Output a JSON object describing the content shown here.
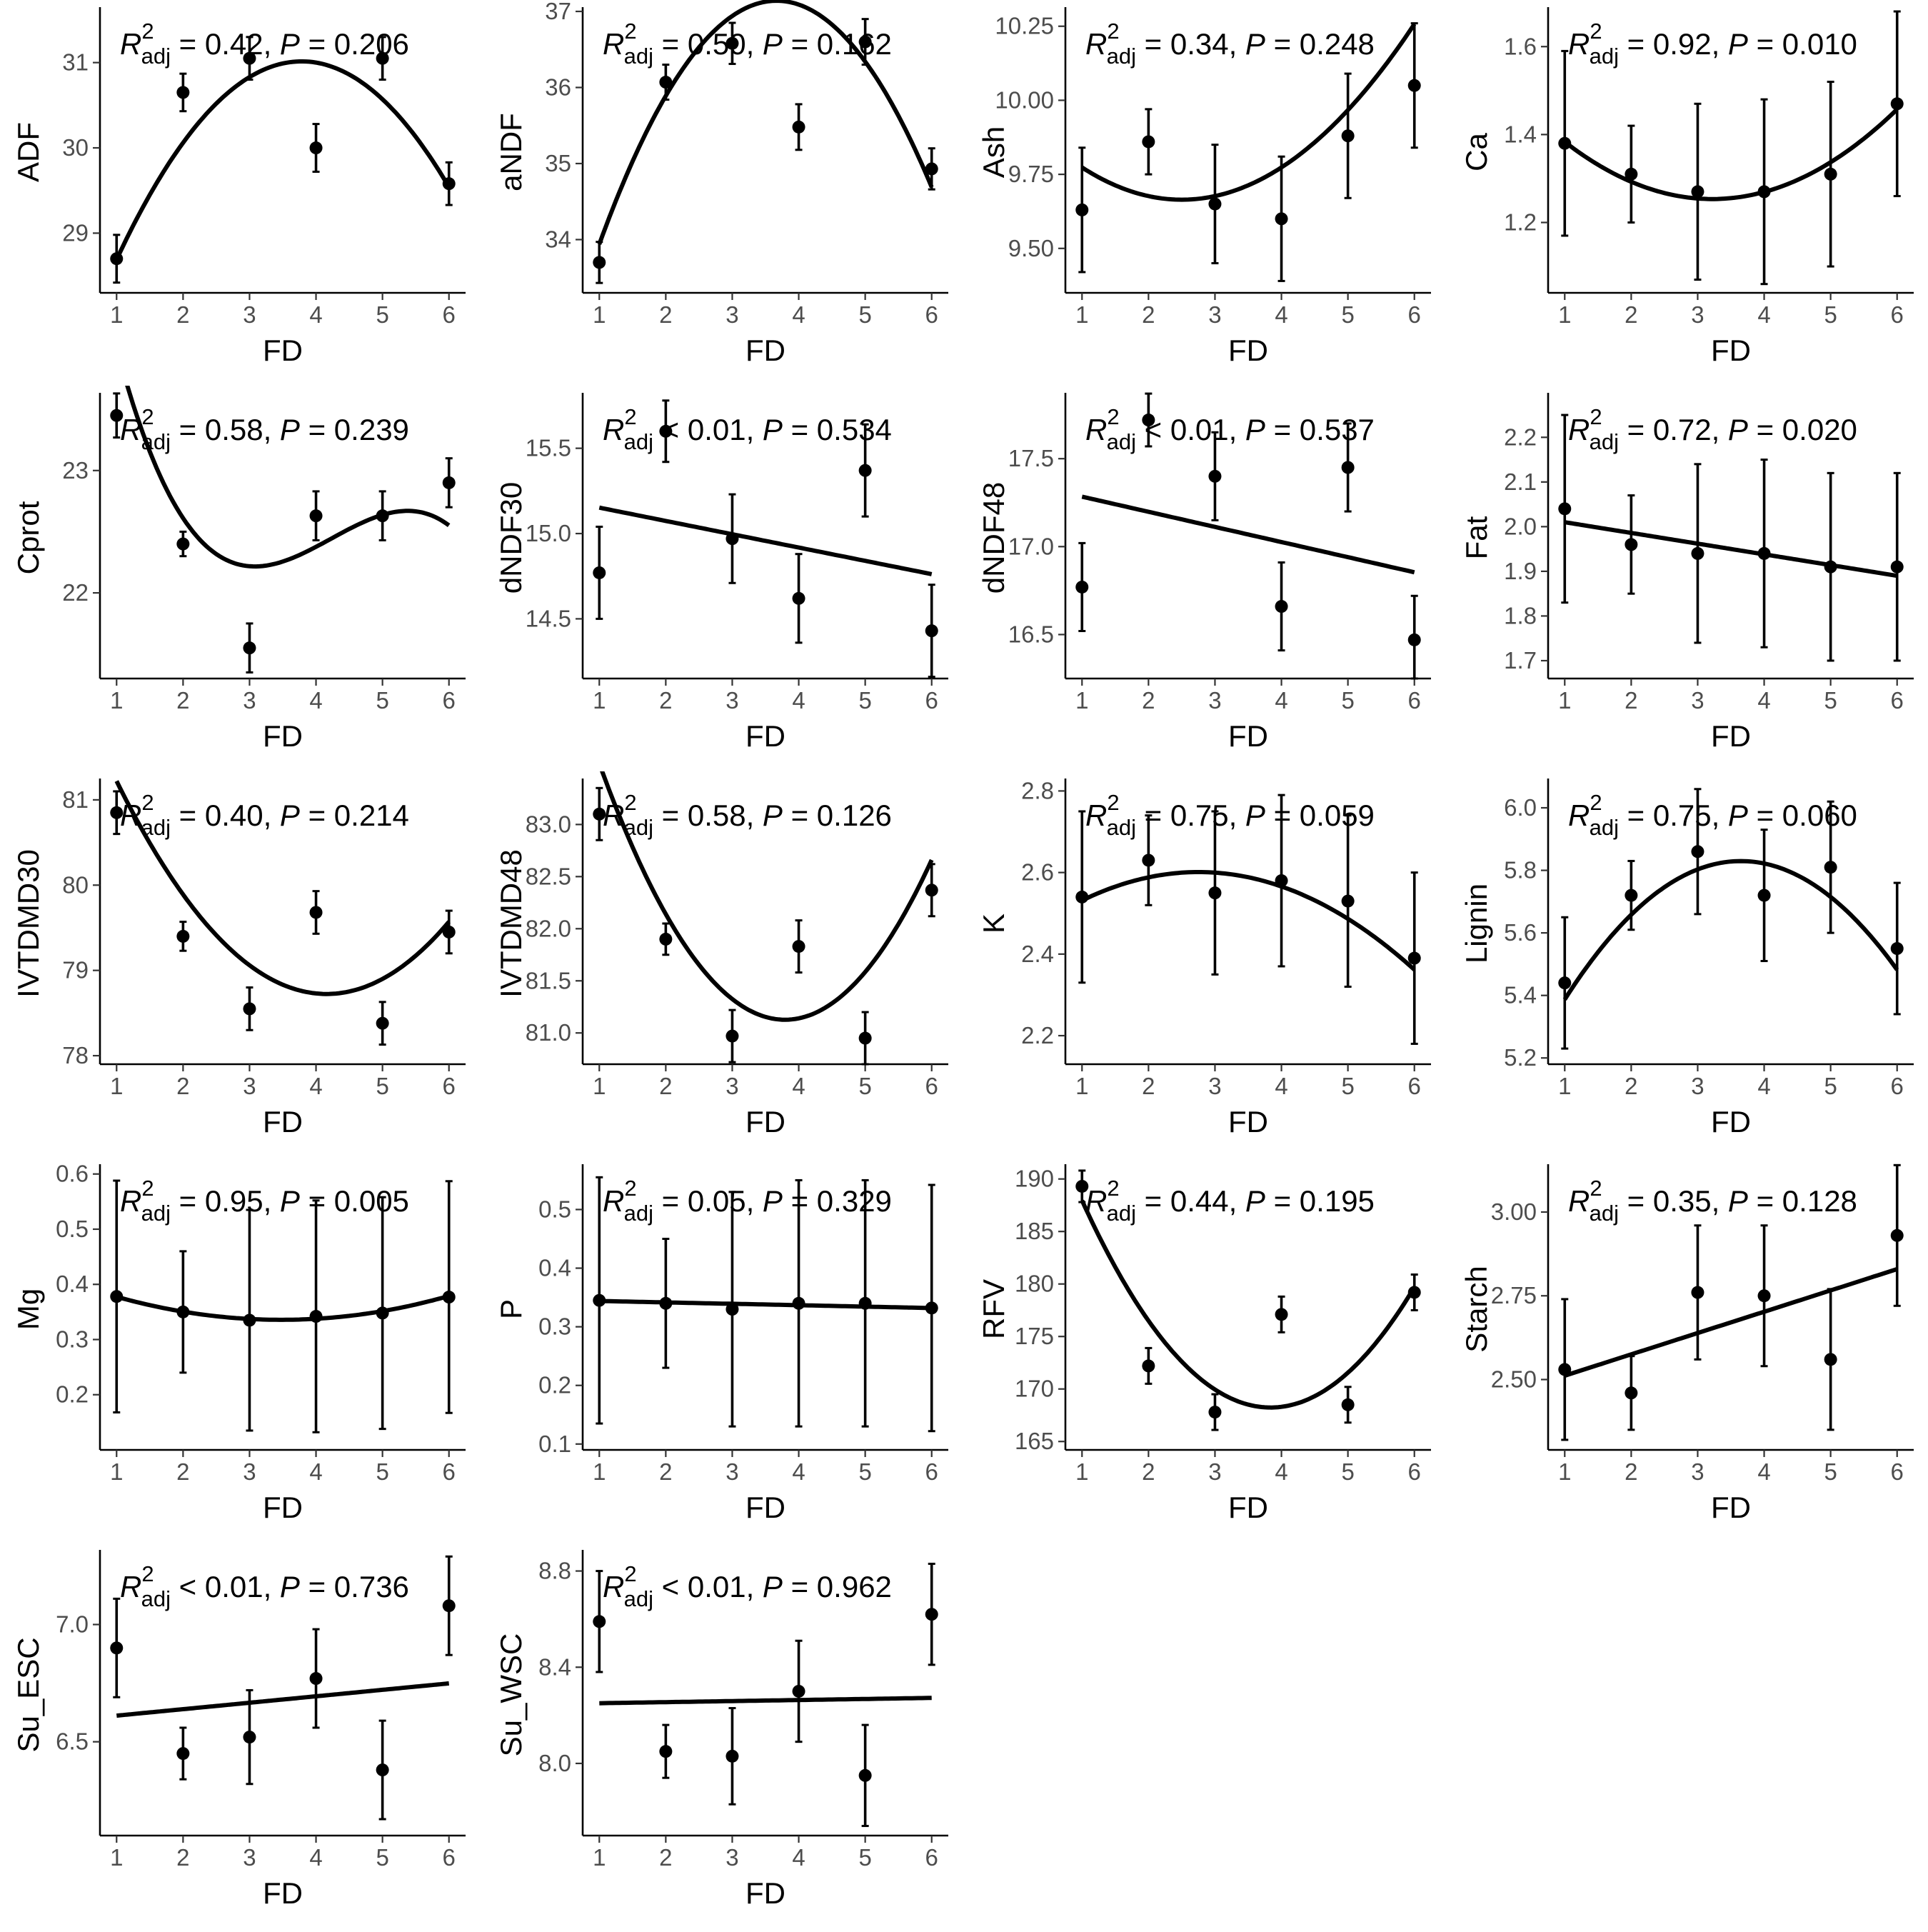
{
  "chart_data": [
    {
      "type": "scatter",
      "ylabel": "ADF",
      "xlabel": "FD",
      "x": [
        1,
        2,
        3,
        4,
        5,
        6
      ],
      "xticks": [
        "1",
        "2",
        "3",
        "4",
        "5",
        "6"
      ],
      "ylim": [
        28.3,
        31.6
      ],
      "yticks": [
        29,
        30,
        31
      ],
      "ytick_labels": [
        "29",
        "30",
        "31"
      ],
      "means": [
        28.7,
        30.65,
        31.05,
        30.0,
        31.05,
        29.58
      ],
      "se": [
        0.28,
        0.22,
        0.25,
        0.28,
        0.25,
        0.25
      ],
      "fit": "quadratic",
      "fit_coef": [
        26.72,
        2.27,
        -0.3
      ],
      "fit_range": [
        1,
        6
      ],
      "stats": {
        "r2": "0.42",
        "p": "0.206",
        "op": "="
      }
    },
    {
      "type": "scatter",
      "ylabel": "aNDF",
      "xlabel": "FD",
      "x": [
        1,
        2,
        3,
        4,
        5,
        6
      ],
      "xticks": [
        "1",
        "2",
        "3",
        "4",
        "5",
        "6"
      ],
      "ylim": [
        33.3,
        37.0
      ],
      "yticks": [
        34,
        35,
        36,
        37
      ],
      "ytick_labels": [
        "34",
        "35",
        "36",
        "37"
      ],
      "means": [
        33.7,
        36.07,
        36.58,
        35.48,
        36.6,
        34.93
      ],
      "se": [
        0.27,
        0.23,
        0.27,
        0.3,
        0.3,
        0.27
      ],
      "fit": "quadratic",
      "fit_coef": [
        31.09,
        3.3,
        -0.45
      ],
      "fit_range": [
        1,
        6
      ],
      "stats": {
        "r2": "0.50",
        "p": "0.162",
        "op": "="
      }
    },
    {
      "type": "scatter",
      "ylabel": "Ash",
      "xlabel": "FD",
      "x": [
        1,
        2,
        3,
        4,
        5,
        6
      ],
      "xticks": [
        "1",
        "2",
        "3",
        "4",
        "5",
        "6"
      ],
      "ylim": [
        9.35,
        10.3
      ],
      "yticks": [
        9.5,
        9.75,
        10.0,
        10.25
      ],
      "ytick_labels": [
        "9.50",
        "9.75",
        "10.00",
        "10.25"
      ],
      "means": [
        9.63,
        9.86,
        9.65,
        9.6,
        9.88,
        10.05
      ],
      "se": [
        0.21,
        0.11,
        0.2,
        0.21,
        0.21,
        0.21
      ],
      "fit": "quadratic",
      "fit_coef": [
        9.967,
        -0.242,
        0.0484
      ],
      "fit_range": [
        1,
        6
      ],
      "stats": {
        "r2": "0.34",
        "p": "0.248",
        "op": "="
      }
    },
    {
      "type": "scatter",
      "ylabel": "Ca",
      "xlabel": "FD",
      "x": [
        1,
        2,
        3,
        4,
        5,
        6
      ],
      "xticks": [
        "1",
        "2",
        "3",
        "4",
        "5",
        "6"
      ],
      "ylim": [
        1.04,
        1.68
      ],
      "yticks": [
        1.2,
        1.4,
        1.6
      ],
      "ytick_labels": [
        "1.2",
        "1.4",
        "1.6"
      ],
      "means": [
        1.38,
        1.31,
        1.27,
        1.27,
        1.31,
        1.47
      ],
      "se": [
        0.21,
        0.11,
        0.2,
        0.21,
        0.21,
        0.21
      ],
      "fit": "quadratic",
      "fit_coef": [
        1.527,
        -0.17,
        0.0264
      ],
      "fit_range": [
        1,
        6
      ],
      "stats": {
        "r2": "0.92",
        "p": "0.010",
        "op": "="
      }
    },
    {
      "type": "scatter",
      "ylabel": "Cprot",
      "xlabel": "FD",
      "x": [
        1,
        2,
        3,
        4,
        5,
        6
      ],
      "xticks": [
        "1",
        "2",
        "3",
        "4",
        "5",
        "6"
      ],
      "ylim": [
        21.3,
        23.6
      ],
      "yticks": [
        22,
        23
      ],
      "ytick_labels": [
        "22",
        "23"
      ],
      "means": [
        23.45,
        22.4,
        21.55,
        22.63,
        22.63,
        22.9
      ],
      "se": [
        0.18,
        0.1,
        0.2,
        0.2,
        0.2,
        0.2
      ],
      "fit": "cubic",
      "fit_coef": [
        26.85,
        -3.72,
        0.95,
        -0.0749
      ],
      "fit_range": [
        1,
        6
      ],
      "stats": {
        "r2": "0.58",
        "p": "0.239",
        "op": "="
      }
    },
    {
      "type": "scatter",
      "ylabel": "dNDF30",
      "xlabel": "FD",
      "x": [
        1,
        2,
        3,
        4,
        5,
        6
      ],
      "xticks": [
        "1",
        "2",
        "3",
        "4",
        "5",
        "6"
      ],
      "ylim": [
        14.15,
        15.8
      ],
      "yticks": [
        14.5,
        15.0,
        15.5
      ],
      "ytick_labels": [
        "14.5",
        "15.0",
        "15.5"
      ],
      "means": [
        14.77,
        15.6,
        14.97,
        14.62,
        15.37,
        14.43
      ],
      "se": [
        0.27,
        0.18,
        0.26,
        0.26,
        0.27,
        0.27
      ],
      "fit": "linear",
      "fit_coef": [
        15.23,
        -0.078
      ],
      "fit_range": [
        1,
        6
      ],
      "stats": {
        "r2": "0.01",
        "p": "0.534",
        "op": "<"
      }
    },
    {
      "type": "scatter",
      "ylabel": "dNDF48",
      "xlabel": "FD",
      "x": [
        1,
        2,
        3,
        4,
        5,
        6
      ],
      "xticks": [
        "1",
        "2",
        "3",
        "4",
        "5",
        "6"
      ],
      "ylim": [
        16.25,
        17.85
      ],
      "yticks": [
        16.5,
        17.0,
        17.5
      ],
      "ytick_labels": [
        "16.5",
        "17.0",
        "17.5"
      ],
      "means": [
        16.77,
        17.72,
        17.4,
        16.66,
        17.45,
        16.47
      ],
      "se": [
        0.25,
        0.15,
        0.25,
        0.25,
        0.25,
        0.25
      ],
      "fit": "linear",
      "fit_coef": [
        17.37,
        -0.086
      ],
      "fit_range": [
        1,
        6
      ],
      "stats": {
        "r2": "0.01",
        "p": "0.537",
        "op": "<"
      }
    },
    {
      "type": "scatter",
      "ylabel": "Fat",
      "xlabel": "FD",
      "x": [
        1,
        2,
        3,
        4,
        5,
        6
      ],
      "xticks": [
        "1",
        "2",
        "3",
        "4",
        "5",
        "6"
      ],
      "ylim": [
        1.66,
        2.29
      ],
      "yticks": [
        1.7,
        1.8,
        1.9,
        2.0,
        2.1,
        2.2
      ],
      "ytick_labels": [
        "1.7",
        "1.8",
        "1.9",
        "2.0",
        "2.1",
        "2.2"
      ],
      "means": [
        2.04,
        1.96,
        1.94,
        1.94,
        1.91,
        1.91
      ],
      "se": [
        0.21,
        0.11,
        0.2,
        0.21,
        0.21,
        0.21
      ],
      "fit": "linear",
      "fit_coef": [
        2.034,
        -0.024
      ],
      "fit_range": [
        1,
        6
      ],
      "stats": {
        "r2": "0.72",
        "p": "0.020",
        "op": "="
      }
    },
    {
      "type": "scatter",
      "ylabel": "IVTDMD30",
      "xlabel": "FD",
      "x": [
        1,
        2,
        3,
        4,
        5,
        6
      ],
      "xticks": [
        "1",
        "2",
        "3",
        "4",
        "5",
        "6"
      ],
      "ylim": [
        77.9,
        81.2
      ],
      "yticks": [
        78,
        79,
        80,
        81
      ],
      "ytick_labels": [
        "78",
        "79",
        "80",
        "81"
      ],
      "means": [
        80.85,
        79.4,
        78.55,
        79.68,
        78.38,
        79.45
      ],
      "se": [
        0.25,
        0.17,
        0.25,
        0.25,
        0.25,
        0.25
      ],
      "fit": "quadratic",
      "fit_coef": [
        83.05,
        -2.08,
        0.25
      ],
      "fit_range": [
        1,
        6
      ],
      "stats": {
        "r2": "0.40",
        "p": "0.214",
        "op": "="
      }
    },
    {
      "type": "scatter",
      "ylabel": "IVTDMD48",
      "xlabel": "FD",
      "x": [
        1,
        2,
        3,
        4,
        5,
        6
      ],
      "xticks": [
        "1",
        "2",
        "3",
        "4",
        "5",
        "6"
      ],
      "ylim": [
        80.7,
        83.4
      ],
      "yticks": [
        81.0,
        81.5,
        82.0,
        82.5,
        83.0
      ],
      "ytick_labels": [
        "81.0",
        "81.5",
        "82.0",
        "82.5",
        "83.0"
      ],
      "means": [
        83.1,
        81.9,
        80.97,
        81.83,
        80.95,
        82.37
      ],
      "se": [
        0.25,
        0.15,
        0.25,
        0.25,
        0.25,
        0.25
      ],
      "fit": "quadratic",
      "fit_coef": [
        85.66,
        -2.39,
        0.315
      ],
      "fit_range": [
        1,
        6
      ],
      "stats": {
        "r2": "0.58",
        "p": "0.126",
        "op": "="
      }
    },
    {
      "type": "scatter",
      "ylabel": "K",
      "xlabel": "FD",
      "x": [
        1,
        2,
        3,
        4,
        5,
        6
      ],
      "xticks": [
        "1",
        "2",
        "3",
        "4",
        "5",
        "6"
      ],
      "ylim": [
        2.13,
        2.82
      ],
      "yticks": [
        2.2,
        2.4,
        2.6,
        2.8
      ],
      "ytick_labels": [
        "2.2",
        "2.4",
        "2.6",
        "2.8"
      ],
      "means": [
        2.54,
        2.63,
        2.55,
        2.58,
        2.53,
        2.39
      ],
      "se": [
        0.21,
        0.11,
        0.2,
        0.21,
        0.21,
        0.21
      ],
      "fit": "quadratic",
      "fit_coef": [
        2.429,
        0.125,
        -0.0227
      ],
      "fit_range": [
        1,
        6
      ],
      "stats": {
        "r2": "0.75",
        "p": "0.059",
        "op": "="
      }
    },
    {
      "type": "scatter",
      "ylabel": "Lignin",
      "xlabel": "FD",
      "x": [
        1,
        2,
        3,
        4,
        5,
        6
      ],
      "xticks": [
        "1",
        "2",
        "3",
        "4",
        "5",
        "6"
      ],
      "ylim": [
        5.18,
        6.08
      ],
      "yticks": [
        5.2,
        5.4,
        5.6,
        5.8,
        6.0
      ],
      "ytick_labels": [
        "5.2",
        "5.4",
        "5.6",
        "5.8",
        "6.0"
      ],
      "means": [
        5.44,
        5.72,
        5.86,
        5.72,
        5.81,
        5.55
      ],
      "se": [
        0.21,
        0.11,
        0.2,
        0.21,
        0.21,
        0.21
      ],
      "fit": "quadratic",
      "fit_coef": [
        4.99,
        0.46,
        -0.063
      ],
      "fit_range": [
        1,
        6
      ],
      "stats": {
        "r2": "0.75",
        "p": "0.060",
        "op": "="
      }
    },
    {
      "type": "scatter",
      "ylabel": "Mg",
      "xlabel": "FD",
      "x": [
        1,
        2,
        3,
        4,
        5,
        6
      ],
      "xticks": [
        "1",
        "2",
        "3",
        "4",
        "5",
        "6"
      ],
      "ylim": [
        0.1,
        0.61
      ],
      "yticks": [
        0.2,
        0.3,
        0.4,
        0.5,
        0.6
      ],
      "ytick_labels": [
        "0.2",
        "0.3",
        "0.4",
        "0.5",
        "0.6"
      ],
      "means": [
        0.378,
        0.35,
        0.335,
        0.342,
        0.348,
        0.377
      ],
      "se": [
        0.21,
        0.11,
        0.2,
        0.21,
        0.21,
        0.21
      ],
      "fit": "quadratic",
      "fit_coef": [
        0.418,
        -0.0473,
        0.0068
      ],
      "fit_range": [
        1,
        6
      ],
      "stats": {
        "r2": "0.95",
        "p": "0.005",
        "op": "="
      }
    },
    {
      "type": "scatter",
      "ylabel": "P",
      "xlabel": "FD",
      "x": [
        1,
        2,
        3,
        4,
        5,
        6
      ],
      "xticks": [
        "1",
        "2",
        "3",
        "4",
        "5",
        "6"
      ],
      "ylim": [
        0.09,
        0.57
      ],
      "yticks": [
        0.1,
        0.2,
        0.3,
        0.4,
        0.5
      ],
      "ytick_labels": [
        "0.1",
        "0.2",
        "0.3",
        "0.4",
        "0.5"
      ],
      "means": [
        0.345,
        0.34,
        0.33,
        0.34,
        0.34,
        0.332
      ],
      "se": [
        0.21,
        0.11,
        0.2,
        0.21,
        0.21,
        0.21
      ],
      "fit": "linear",
      "fit_coef": [
        0.3464,
        -0.0024
      ],
      "fit_range": [
        1,
        6
      ],
      "stats": {
        "r2": "0.05",
        "p": "0.329",
        "op": "="
      }
    },
    {
      "type": "scatter",
      "ylabel": "RFV",
      "xlabel": "FD",
      "x": [
        1,
        2,
        3,
        4,
        5,
        6
      ],
      "xticks": [
        "1",
        "2",
        "3",
        "4",
        "5",
        "6"
      ],
      "ylim": [
        164.2,
        191
      ],
      "yticks": [
        165,
        170,
        175,
        180,
        185,
        190
      ],
      "ytick_labels": [
        "165",
        "170",
        "175",
        "180",
        "185",
        "190"
      ],
      "means": [
        189.3,
        172.2,
        167.8,
        177.1,
        168.5,
        179.2
      ],
      "se": [
        1.5,
        1.7,
        1.7,
        1.7,
        1.7,
        1.7
      ],
      "fit": "quadratic",
      "fit_coef": [
        204.3,
        -18.8,
        2.45
      ],
      "fit_range": [
        1,
        6
      ],
      "stats": {
        "r2": "0.44",
        "p": "0.195",
        "op": "="
      }
    },
    {
      "type": "scatter",
      "ylabel": "Starch",
      "xlabel": "FD",
      "x": [
        1,
        2,
        3,
        4,
        5,
        6
      ],
      "xticks": [
        "1",
        "2",
        "3",
        "4",
        "5",
        "6"
      ],
      "ylim": [
        2.29,
        3.13
      ],
      "yticks": [
        2.5,
        2.75,
        3.0
      ],
      "ytick_labels": [
        "2.50",
        "2.75",
        "3.00"
      ],
      "means": [
        2.53,
        2.46,
        2.76,
        2.75,
        2.56,
        2.93
      ],
      "se": [
        0.21,
        0.11,
        0.2,
        0.21,
        0.21,
        0.21
      ],
      "fit": "linear",
      "fit_coef": [
        2.448,
        0.0636
      ],
      "fit_range": [
        1,
        6
      ],
      "stats": {
        "r2": "0.35",
        "p": "0.128",
        "op": "="
      }
    },
    {
      "type": "scatter",
      "ylabel": "Su_ESC",
      "xlabel": "FD",
      "x": [
        1,
        2,
        3,
        4,
        5,
        6
      ],
      "xticks": [
        "1",
        "2",
        "3",
        "4",
        "5",
        "6"
      ],
      "ylim": [
        6.1,
        7.3
      ],
      "yticks": [
        6.5,
        7.0
      ],
      "ytick_labels": [
        "6.5",
        "7.0"
      ],
      "means": [
        6.9,
        6.45,
        6.52,
        6.77,
        6.38,
        7.08
      ],
      "se": [
        0.21,
        0.11,
        0.2,
        0.21,
        0.21,
        0.21
      ],
      "fit": "linear",
      "fit_coef": [
        6.584,
        0.0275
      ],
      "fit_range": [
        1,
        6
      ],
      "stats": {
        "r2": "0.01",
        "p": "0.736",
        "op": "<"
      }
    },
    {
      "type": "scatter",
      "ylabel": "Su_WSC",
      "xlabel": "FD",
      "x": [
        1,
        2,
        3,
        4,
        5,
        6
      ],
      "xticks": [
        "1",
        "2",
        "3",
        "4",
        "5",
        "6"
      ],
      "ylim": [
        7.7,
        8.87
      ],
      "yticks": [
        8.0,
        8.4,
        8.8
      ],
      "ytick_labels": [
        "8.0",
        "8.4",
        "8.8"
      ],
      "means": [
        8.59,
        8.05,
        8.03,
        8.3,
        7.95,
        8.62
      ],
      "se": [
        0.21,
        0.11,
        0.2,
        0.21,
        0.21,
        0.21
      ],
      "fit": "linear",
      "fit_coef": [
        8.246,
        0.0044
      ],
      "fit_range": [
        1,
        6
      ],
      "stats": {
        "r2": "0.01",
        "p": "0.962",
        "op": "<"
      }
    }
  ]
}
